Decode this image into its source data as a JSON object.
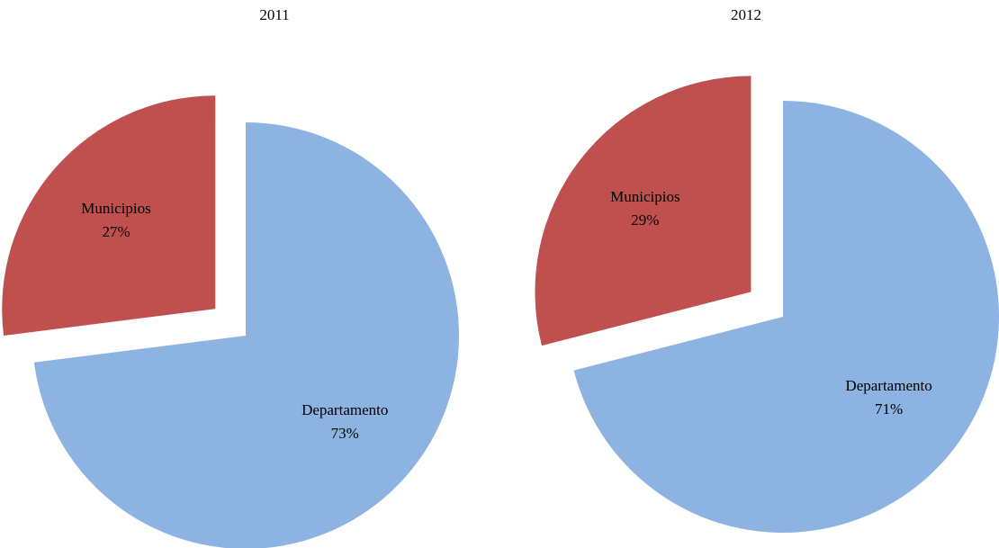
{
  "chart_data": [
    {
      "type": "pie",
      "title": "2011",
      "categories": [
        "Departamento",
        "Municipios"
      ],
      "values": [
        73,
        27
      ],
      "value_labels": [
        "73%",
        "27%"
      ],
      "colors": [
        "#8db3e2",
        "#c0504d"
      ],
      "exploded": [
        false,
        true
      ]
    },
    {
      "type": "pie",
      "title": "2012",
      "categories": [
        "Departamento",
        "Municipios"
      ],
      "values": [
        71,
        29
      ],
      "value_labels": [
        "71%",
        "29%"
      ],
      "colors": [
        "#8db3e2",
        "#c0504d"
      ],
      "exploded": [
        false,
        true
      ]
    }
  ]
}
